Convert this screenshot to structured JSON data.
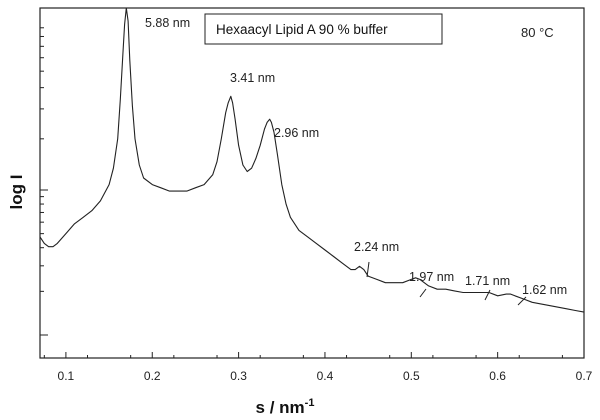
{
  "chart_data": {
    "type": "line",
    "title": "",
    "legend_text": "Hexaacyl Lipid A  90 % buffer",
    "temperature_label": "80 °C",
    "xlabel_main": "s /  nm",
    "xlabel_sup": "-1",
    "ylabel": "log I",
    "xlim": [
      0.07,
      0.7
    ],
    "ylim": [
      0,
      1
    ],
    "x_ticks": [
      0.1,
      0.2,
      0.3,
      0.4,
      0.5,
      0.6,
      0.7
    ],
    "x_tick_labels": [
      "0.1",
      "0.2",
      "0.3",
      "0.4",
      "0.5",
      "0.6",
      "0.7"
    ],
    "y_scale": "log",
    "series": [
      {
        "x": [
          0.07,
          0.075,
          0.08,
          0.085,
          0.09,
          0.1,
          0.11,
          0.12,
          0.13,
          0.14,
          0.15,
          0.155,
          0.16,
          0.163,
          0.166,
          0.168,
          0.17,
          0.172,
          0.174,
          0.177,
          0.18,
          0.185,
          0.19,
          0.2,
          0.21,
          0.22,
          0.23,
          0.24,
          0.25,
          0.26,
          0.27,
          0.275,
          0.28,
          0.285,
          0.288,
          0.291,
          0.293,
          0.296,
          0.3,
          0.305,
          0.31,
          0.315,
          0.32,
          0.325,
          0.33,
          0.333,
          0.336,
          0.338,
          0.341,
          0.345,
          0.35,
          0.355,
          0.36,
          0.37,
          0.38,
          0.39,
          0.4,
          0.41,
          0.42,
          0.43,
          0.435,
          0.44,
          0.445,
          0.45,
          0.46,
          0.47,
          0.48,
          0.49,
          0.5,
          0.505,
          0.51,
          0.52,
          0.53,
          0.54,
          0.55,
          0.56,
          0.57,
          0.58,
          0.585,
          0.59,
          0.6,
          0.61,
          0.615,
          0.62,
          0.63,
          0.64,
          0.65,
          0.66,
          0.67,
          0.68,
          0.69,
          0.7
        ],
        "y": [
          0.3,
          0.28,
          0.27,
          0.27,
          0.28,
          0.31,
          0.34,
          0.36,
          0.38,
          0.41,
          0.46,
          0.51,
          0.6,
          0.72,
          0.86,
          0.95,
          1.0,
          0.96,
          0.84,
          0.7,
          0.6,
          0.52,
          0.48,
          0.46,
          0.45,
          0.44,
          0.44,
          0.44,
          0.45,
          0.46,
          0.49,
          0.53,
          0.6,
          0.68,
          0.71,
          0.73,
          0.71,
          0.66,
          0.58,
          0.52,
          0.5,
          0.51,
          0.54,
          0.58,
          0.63,
          0.65,
          0.66,
          0.65,
          0.62,
          0.55,
          0.46,
          0.4,
          0.36,
          0.32,
          0.3,
          0.28,
          0.26,
          0.24,
          0.22,
          0.2,
          0.2,
          0.21,
          0.2,
          0.18,
          0.17,
          0.16,
          0.16,
          0.16,
          0.17,
          0.175,
          0.17,
          0.15,
          0.14,
          0.14,
          0.135,
          0.13,
          0.13,
          0.13,
          0.13,
          0.13,
          0.12,
          0.125,
          0.125,
          0.12,
          0.11,
          0.1,
          0.095,
          0.09,
          0.085,
          0.08,
          0.075,
          0.07
        ]
      }
    ],
    "annotations": [
      {
        "text": "5.88 nm",
        "x": 0.17
      },
      {
        "text": "3.41 nm",
        "x": 0.291
      },
      {
        "text": "2.96 nm",
        "x": 0.336
      },
      {
        "text": "2.24 nm",
        "x": 0.44
      },
      {
        "text": "1.97 nm",
        "x": 0.505
      },
      {
        "text": "1.71 nm",
        "x": 0.585
      },
      {
        "text": "1.62 nm",
        "x": 0.62
      }
    ],
    "grid": false
  }
}
